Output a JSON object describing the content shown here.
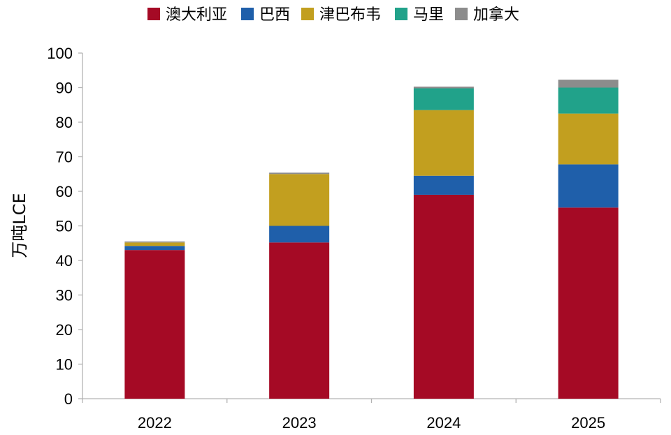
{
  "chart_data": {
    "type": "bar",
    "stacked": true,
    "title": "",
    "xlabel": "",
    "ylabel": "万吨LCE",
    "ylim": [
      0,
      100
    ],
    "yticks": [
      0,
      10,
      20,
      30,
      40,
      50,
      60,
      70,
      80,
      90,
      100
    ],
    "grid": false,
    "legend_position": "top",
    "categories": [
      "2022",
      "2023",
      "2024",
      "2025"
    ],
    "series": [
      {
        "name": "澳大利亚",
        "color": "#a50a25",
        "values": [
          43,
          45.2,
          59,
          55.3
        ]
      },
      {
        "name": "巴西",
        "color": "#1f5faa",
        "values": [
          1.2,
          4.8,
          5.5,
          12.5
        ]
      },
      {
        "name": "津巴布韦",
        "color": "#c29f1f",
        "values": [
          1,
          15,
          19,
          14.7
        ]
      },
      {
        "name": "马里",
        "color": "#21a28a",
        "values": [
          0,
          0,
          6.3,
          7.5
        ]
      },
      {
        "name": "加拿大",
        "color": "#8c8c8c",
        "values": [
          0.3,
          0.4,
          0.5,
          2.3
        ]
      }
    ]
  }
}
